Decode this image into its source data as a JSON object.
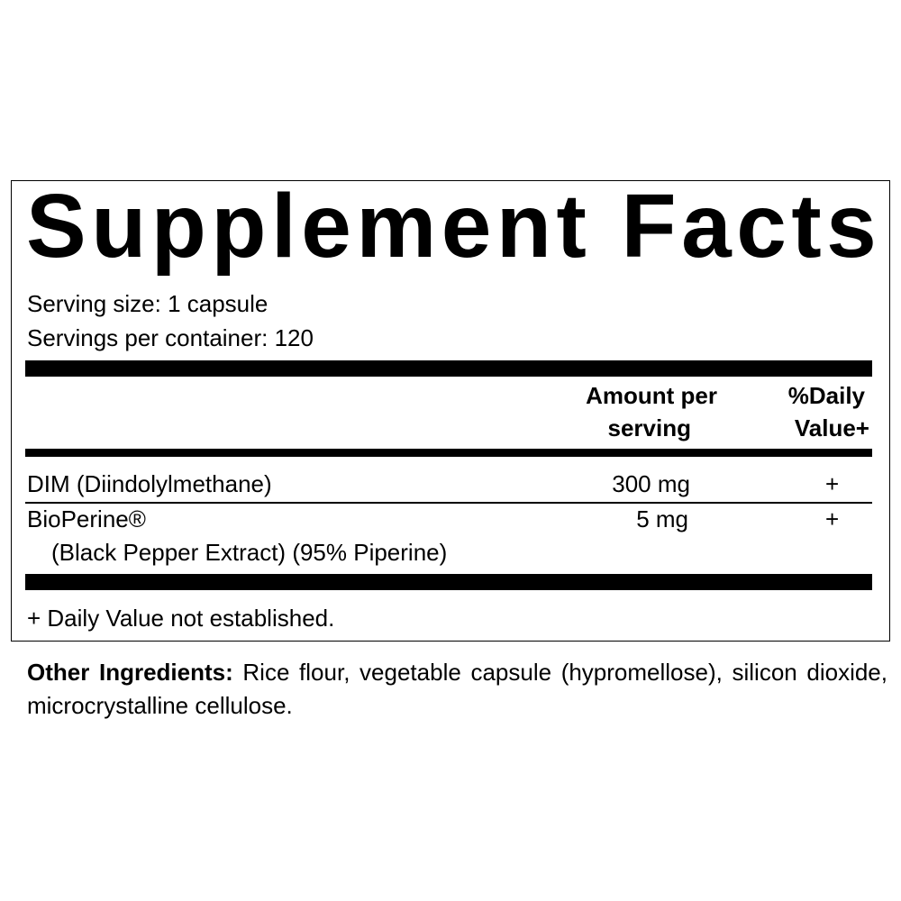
{
  "title": "Supplement Facts",
  "serving_size": "Serving size: 1 capsule",
  "servings_per_container": "Servings per container: 120",
  "columns": {
    "amount_line1": "Amount per",
    "amount_line2": "serving",
    "dv_line1": "%Daily",
    "dv_line2": "Value+"
  },
  "rows": [
    {
      "name": "DIM (Diindolylmethane)",
      "amount": "300 mg",
      "dv": "+"
    },
    {
      "name": "BioPerine®",
      "subname": "(Black Pepper Extract) (95% Piperine)",
      "amount": "5 mg",
      "dv": "+"
    }
  ],
  "footnote": "+ Daily Value not established.",
  "other_ingredients": {
    "label": "Other Ingredients:",
    "text": " Rice flour, vegetable capsule (hypromellose), silicon dioxide, microcrystalline cellulose."
  }
}
